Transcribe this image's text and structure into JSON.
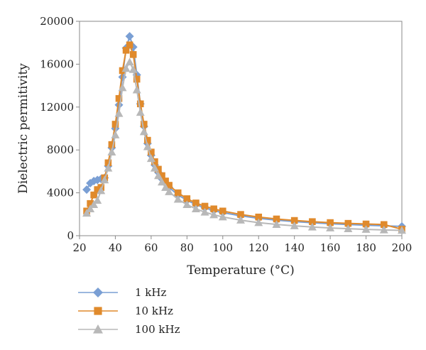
{
  "chart_data": {
    "type": "scatter",
    "xlabel": "Temperature (°C)",
    "ylabel": "Dielectric permitivity",
    "xlim": [
      20,
      200
    ],
    "ylim": [
      0,
      20000
    ],
    "x_ticks": [
      "20",
      "40",
      "60",
      "80",
      "100",
      "120",
      "140",
      "160",
      "180",
      "200"
    ],
    "y_ticks": [
      "0",
      "4000",
      "8000",
      "12000",
      "16000",
      "20000"
    ],
    "grid": false,
    "legend_position": "bottom-left",
    "series": [
      {
        "name": "1 kHz",
        "color": "#7a9fd4",
        "marker": "diamond",
        "x": [
          24,
          26,
          28,
          30,
          32,
          34,
          36,
          38,
          40,
          42,
          44,
          46,
          48,
          50,
          52,
          54,
          56,
          58,
          60,
          62,
          64,
          66,
          68,
          70,
          75,
          80,
          85,
          90,
          95,
          100,
          110,
          120,
          130,
          140,
          150,
          160,
          170,
          180,
          190,
          200
        ],
        "y": [
          4300,
          4900,
          5100,
          5200,
          5300,
          5400,
          6500,
          8200,
          10000,
          12200,
          14800,
          17500,
          18600,
          17600,
          15000,
          12300,
          10200,
          8600,
          7500,
          6600,
          5900,
          5300,
          4900,
          4500,
          3800,
          3300,
          2900,
          2600,
          2350,
          2150,
          1850,
          1620,
          1450,
          1320,
          1210,
          1120,
          1040,
          980,
          920,
          870
        ]
      },
      {
        "name": "10 kHz",
        "color": "#e08a2c",
        "marker": "square",
        "x": [
          24,
          26,
          28,
          30,
          32,
          34,
          36,
          38,
          40,
          42,
          44,
          46,
          48,
          50,
          52,
          54,
          56,
          58,
          60,
          62,
          64,
          66,
          68,
          70,
          75,
          80,
          85,
          90,
          95,
          100,
          110,
          120,
          130,
          140,
          150,
          160,
          170,
          180,
          190,
          200
        ],
        "y": [
          2300,
          3000,
          3800,
          4300,
          4500,
          5400,
          6800,
          8500,
          10400,
          12800,
          15400,
          17300,
          17800,
          16900,
          14600,
          12300,
          10400,
          8900,
          7800,
          6900,
          6200,
          5600,
          5100,
          4700,
          4000,
          3450,
          3050,
          2750,
          2500,
          2300,
          1980,
          1740,
          1560,
          1420,
          1310,
          1220,
          1150,
          1090,
          1040,
          600
        ]
      },
      {
        "name": "100 kHz",
        "color": "#b8b8b8",
        "marker": "triangle",
        "x": [
          24,
          26,
          28,
          30,
          32,
          34,
          36,
          38,
          40,
          42,
          44,
          46,
          48,
          50,
          52,
          54,
          56,
          58,
          60,
          62,
          64,
          66,
          68,
          70,
          75,
          80,
          85,
          90,
          95,
          100,
          110,
          120,
          130,
          140,
          150,
          160,
          170,
          180,
          190,
          200
        ],
        "y": [
          2100,
          2500,
          2900,
          3300,
          4200,
          5200,
          6300,
          7800,
          9400,
          11400,
          13800,
          15600,
          16200,
          15500,
          13600,
          11500,
          9700,
          8300,
          7200,
          6300,
          5600,
          5000,
          4500,
          4100,
          3400,
          2900,
          2500,
          2200,
          1950,
          1750,
          1450,
          1220,
          1050,
          920,
          810,
          720,
          650,
          590,
          540,
          500
        ]
      }
    ]
  }
}
